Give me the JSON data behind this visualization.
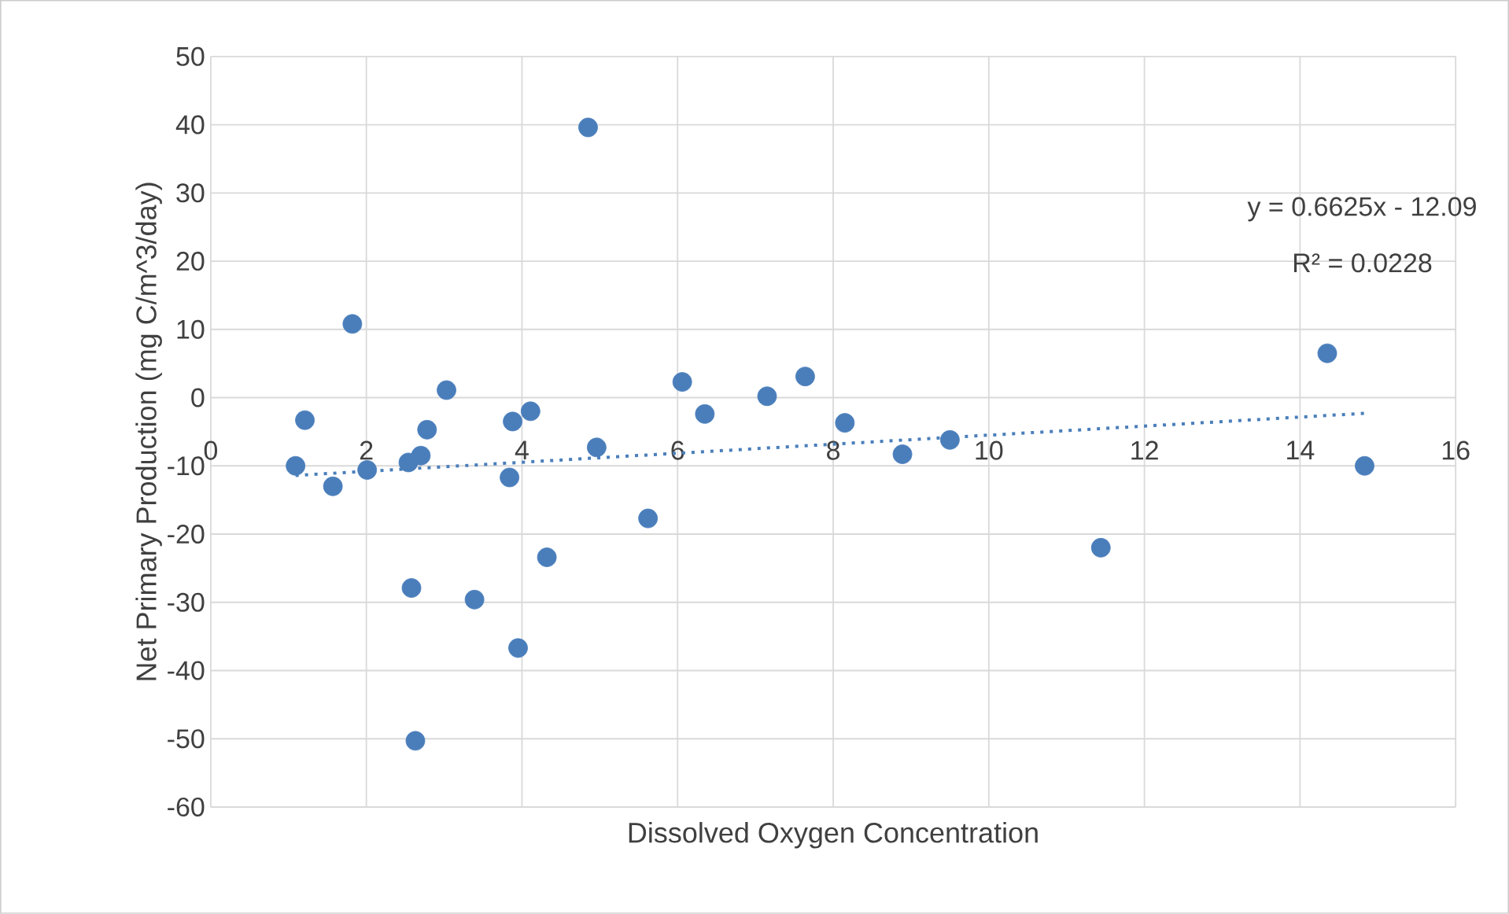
{
  "chart_data": {
    "type": "scatter",
    "xlabel": "Dissolved Oxygen Concentration",
    "ylabel": "Net Primary Production (mg C/m^3/day)",
    "xlim": [
      0,
      16
    ],
    "xticks": [
      0,
      2,
      4,
      6,
      8,
      10,
      12,
      14,
      16
    ],
    "ylim": [
      -60,
      50
    ],
    "yticks": [
      -60,
      -50,
      -40,
      -30,
      -20,
      -10,
      0,
      10,
      20,
      30,
      40,
      50
    ],
    "grid": true,
    "annotations": [
      "y = 0.6625x - 12.09",
      "R² = 0.0228"
    ],
    "series": [
      {
        "color": "#4a7ebb",
        "marker": "circle",
        "x": [
          4.85,
          1.82,
          3.03,
          6.06,
          7.64,
          7.15,
          1.21,
          4.11,
          3.88,
          2.78,
          6.35,
          8.15,
          1.09,
          1.57,
          2.01,
          2.54,
          2.7,
          3.84,
          4.96,
          5.62,
          4.32,
          2.58,
          3.39,
          3.95,
          2.63,
          8.89,
          9.5,
          11.44,
          14.35,
          14.83
        ],
        "values": [
          39.6,
          10.8,
          1.1,
          2.3,
          3.1,
          0.2,
          -3.3,
          -2.0,
          -3.5,
          -4.7,
          -2.4,
          -3.7,
          -10.0,
          -13.0,
          -10.6,
          -9.5,
          -8.5,
          -11.7,
          -7.3,
          -17.7,
          -23.4,
          -27.9,
          -29.6,
          -36.7,
          -50.3,
          -8.3,
          -6.2,
          -22.0,
          6.5,
          -10.0
        ]
      },
      {
        "type": "line",
        "color": "#4a7ebb",
        "line_style": "dotted",
        "marker": "none",
        "x": [
          1.09,
          14.83
        ],
        "values": [
          -11.4,
          -2.3
        ]
      }
    ]
  }
}
